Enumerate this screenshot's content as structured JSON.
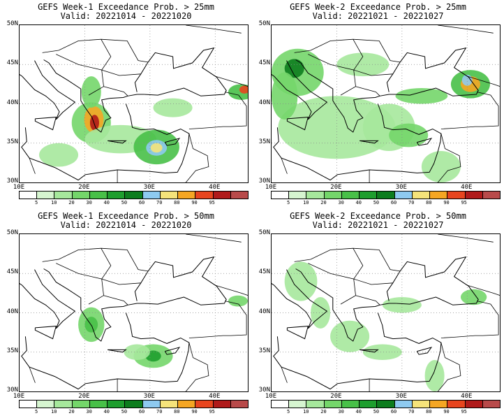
{
  "panels": [
    {
      "title": "GEFS Week-1 Exceedance Prob. > 25mm",
      "valid": "Valid: 20221014 - 20221020"
    },
    {
      "title": "GEFS Week-2 Exceedance Prob. > 25mm",
      "valid": "Valid: 20221021 - 20221027"
    },
    {
      "title": "GEFS Week-1 Exceedance Prob. > 50mm",
      "valid": "Valid: 20221014 - 20221020"
    },
    {
      "title": "GEFS Week-2 Exceedance Prob. > 50mm",
      "valid": "Valid: 20221021 - 20221027"
    }
  ],
  "axes": {
    "lat_labels": [
      "50N",
      "45N",
      "40N",
      "35N",
      "30N"
    ],
    "lon_labels": [
      "10E",
      "20E",
      "30E",
      "40E"
    ]
  },
  "colorbar": {
    "ticks": [
      "5",
      "10",
      "20",
      "30",
      "40",
      "50",
      "60",
      "70",
      "80",
      "90",
      "95"
    ],
    "colors": [
      "#ffffff",
      "#d6f5d0",
      "#a6e89c",
      "#74d66a",
      "#48c048",
      "#1e9e2e",
      "#0d7d1e",
      "#8ecaf0",
      "#f5e37a",
      "#f5a623",
      "#e8451e",
      "#b01a1a",
      "#b84a4a"
    ]
  }
}
